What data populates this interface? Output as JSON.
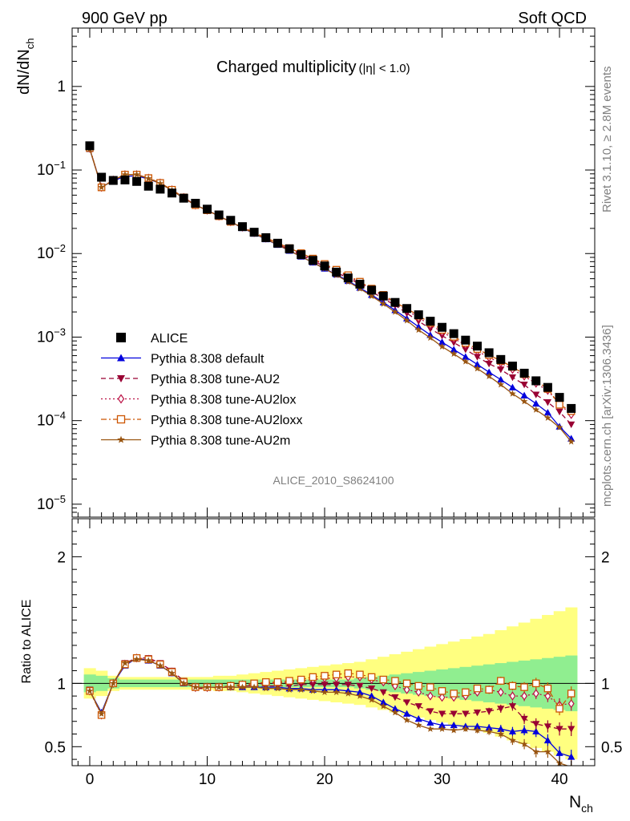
{
  "header": {
    "left": "900 GeV pp",
    "right": "Soft QCD"
  },
  "side_text": {
    "rivet": "Rivet 3.1.10, ≥ 2.8M events",
    "source": "mcplots.cern.ch [arXiv:1306.3436]"
  },
  "chart_data": [
    {
      "type": "scatter",
      "panel": "main",
      "title": "Charged multiplicity",
      "title_suffix": "(|η| < 1.0)",
      "ylabel": "dN/dN",
      "ylabel_sub": "ch",
      "yscale": "log",
      "ylim": [
        7e-06,
        5
      ],
      "xlim": [
        -1.5,
        43
      ],
      "yticks": [
        {
          "v": 1e-05,
          "base": "10",
          "exp": "−5"
        },
        {
          "v": 0.0001,
          "base": "10",
          "exp": "−4"
        },
        {
          "v": 0.001,
          "base": "10",
          "exp": "−3"
        },
        {
          "v": 0.01,
          "base": "10",
          "exp": "−2"
        },
        {
          "v": 0.1,
          "base": "10",
          "exp": "−1"
        },
        {
          "v": 1,
          "base": "1",
          "exp": ""
        }
      ],
      "analysis_label": "ALICE_2010_S8624100",
      "legend_position": "lower-left",
      "x": [
        0,
        1,
        2,
        3,
        4,
        5,
        6,
        7,
        8,
        9,
        10,
        11,
        12,
        13,
        14,
        15,
        16,
        17,
        18,
        19,
        20,
        21,
        22,
        23,
        24,
        25,
        26,
        27,
        28,
        29,
        30,
        31,
        32,
        33,
        34,
        35,
        36,
        37,
        38,
        39,
        40,
        41
      ],
      "series": [
        {
          "name": "ALICE",
          "color": "#000000",
          "marker": "square-filled",
          "line": "none",
          "values": [
            0.195,
            0.082,
            0.075,
            0.076,
            0.073,
            0.064,
            0.059,
            0.053,
            0.046,
            0.04,
            0.034,
            0.029,
            0.025,
            0.021,
            0.018,
            0.0155,
            0.0133,
            0.0114,
            0.0097,
            0.0083,
            0.0071,
            0.006,
            0.0051,
            0.0043,
            0.00365,
            0.0031,
            0.0026,
            0.0022,
            0.00185,
            0.00155,
            0.00131,
            0.0011,
            0.00092,
            0.00078,
            0.00065,
            0.00054,
            0.00045,
            0.00037,
            0.0003,
            0.00025,
            0.00019,
            0.00014
          ]
        },
        {
          "name": "Pythia 8.308 default",
          "color": "#0000dd",
          "marker": "triangle-up-filled",
          "line": "solid",
          "values": [
            0.178,
            0.063,
            0.074,
            0.084,
            0.085,
            0.078,
            0.069,
            0.057,
            0.046,
            0.038,
            0.033,
            0.028,
            0.024,
            0.0202,
            0.0173,
            0.0148,
            0.0127,
            0.0108,
            0.0092,
            0.0078,
            0.0066,
            0.0056,
            0.0047,
            0.0039,
            0.0032,
            0.0026,
            0.0021,
            0.00167,
            0.00133,
            0.00106,
            0.00087,
            0.00071,
            0.00058,
            0.00047,
            0.00038,
            0.00031,
            0.00025,
            0.0002,
            0.00016,
            0.000125,
            8.5e-05,
            6.1e-05
          ]
        },
        {
          "name": "Pythia 8.308 tune-AU2",
          "color": "#990033",
          "marker": "triangle-down-filled",
          "line": "dashed",
          "values": [
            0.18,
            0.062,
            0.075,
            0.088,
            0.088,
            0.08,
            0.07,
            0.058,
            0.047,
            0.038,
            0.033,
            0.028,
            0.024,
            0.0205,
            0.0176,
            0.0151,
            0.013,
            0.0111,
            0.0096,
            0.0082,
            0.007,
            0.0059,
            0.0051,
            0.0043,
            0.0035,
            0.0029,
            0.0024,
            0.00193,
            0.00155,
            0.00126,
            0.00104,
            0.00086,
            0.00071,
            0.00058,
            0.00048,
            0.00041,
            0.00033,
            0.00027,
            0.000205,
            0.000166,
            0.000128,
            9e-05
          ]
        },
        {
          "name": "Pythia 8.308 tune-AU2lox",
          "color": "#bb1144",
          "marker": "diamond-open",
          "line": "dotted",
          "values": [
            0.182,
            0.062,
            0.076,
            0.088,
            0.088,
            0.08,
            0.07,
            0.058,
            0.047,
            0.038,
            0.033,
            0.028,
            0.024,
            0.0207,
            0.0178,
            0.0153,
            0.0132,
            0.0114,
            0.0099,
            0.0085,
            0.0073,
            0.0062,
            0.0053,
            0.0045,
            0.0037,
            0.0031,
            0.0025,
            0.0021,
            0.0017,
            0.0014,
            0.00115,
            0.00096,
            0.00081,
            0.00068,
            0.00057,
            0.00049,
            0.00041,
            0.00034,
            0.00028,
            0.00023,
            0.000158,
            0.000118
          ]
        },
        {
          "name": "Pythia 8.308 tune-AU2loxx",
          "color": "#cc5500",
          "marker": "square-open",
          "line": "dashdot",
          "values": [
            0.183,
            0.062,
            0.076,
            0.088,
            0.088,
            0.08,
            0.07,
            0.058,
            0.047,
            0.038,
            0.033,
            0.028,
            0.024,
            0.0208,
            0.0179,
            0.0155,
            0.0134,
            0.0116,
            0.0101,
            0.0087,
            0.0075,
            0.0064,
            0.0055,
            0.0046,
            0.0038,
            0.0032,
            0.0026,
            0.0022,
            0.0018,
            0.00148,
            0.00122,
            0.00101,
            0.00085,
            0.00072,
            0.00061,
            0.00052,
            0.00044,
            0.00036,
            0.0003,
            0.00024,
            0.000155,
            0.00013
          ]
        },
        {
          "name": "Pythia 8.308 tune-AU2m",
          "color": "#995511",
          "marker": "star-filled",
          "line": "solid",
          "values": [
            0.178,
            0.062,
            0.075,
            0.088,
            0.088,
            0.079,
            0.069,
            0.057,
            0.046,
            0.038,
            0.033,
            0.028,
            0.024,
            0.0203,
            0.0174,
            0.0149,
            0.0128,
            0.0108,
            0.0092,
            0.0078,
            0.0066,
            0.0055,
            0.0046,
            0.0038,
            0.0031,
            0.0025,
            0.002,
            0.00158,
            0.00122,
            0.00098,
            0.00077,
            0.00063,
            0.00051,
            0.00042,
            0.00034,
            0.00027,
            0.00021,
            0.00017,
            0.000135,
            0.000108,
            8.3e-05,
            5.6e-05
          ]
        }
      ]
    },
    {
      "type": "scatter",
      "panel": "ratio",
      "ylabel": "Ratio to ALICE",
      "xlabel": "N",
      "xlabel_sub": "ch",
      "ylim": [
        0.35,
        2.3
      ],
      "xlim": [
        -1.5,
        43
      ],
      "xticks": [
        0,
        10,
        20,
        30,
        40
      ],
      "yticks": [
        0.5,
        1,
        2
      ],
      "reference_line": 1,
      "bands": {
        "inner_color": "#90ee90",
        "outer_color": "#ffff80",
        "inner_halfwidth": [
          0.07,
          0.06,
          0.04,
          0.03,
          0.03,
          0.03,
          0.03,
          0.03,
          0.03,
          0.03,
          0.03,
          0.03,
          0.03,
          0.03,
          0.03,
          0.03,
          0.03,
          0.03,
          0.03,
          0.03,
          0.03,
          0.03,
          0.03,
          0.04,
          0.05,
          0.06,
          0.07,
          0.08,
          0.09,
          0.1,
          0.11,
          0.12,
          0.13,
          0.14,
          0.15,
          0.16,
          0.17,
          0.18,
          0.19,
          0.2,
          0.21,
          0.22
        ],
        "outer_halfwidth": [
          0.12,
          0.1,
          0.06,
          0.05,
          0.05,
          0.05,
          0.05,
          0.05,
          0.05,
          0.05,
          0.05,
          0.06,
          0.06,
          0.07,
          0.08,
          0.09,
          0.1,
          0.11,
          0.12,
          0.13,
          0.14,
          0.15,
          0.16,
          0.17,
          0.19,
          0.21,
          0.23,
          0.25,
          0.27,
          0.29,
          0.31,
          0.33,
          0.35,
          0.37,
          0.39,
          0.42,
          0.45,
          0.48,
          0.51,
          0.54,
          0.57,
          0.6
        ]
      },
      "series": [
        {
          "name": "Pythia 8.308 default",
          "color": "#0000dd",
          "marker": "triangle-up-filled",
          "line": "solid",
          "values": [
            0.94,
            0.77,
            1.0,
            1.14,
            1.2,
            1.18,
            1.14,
            1.08,
            1.0,
            0.97,
            0.97,
            0.97,
            0.97,
            0.97,
            0.97,
            0.97,
            0.97,
            0.96,
            0.96,
            0.95,
            0.95,
            0.95,
            0.94,
            0.93,
            0.9,
            0.85,
            0.8,
            0.76,
            0.72,
            0.69,
            0.67,
            0.67,
            0.66,
            0.66,
            0.65,
            0.64,
            0.62,
            0.63,
            0.62,
            0.55,
            0.45,
            0.42
          ]
        },
        {
          "name": "Pythia 8.308 tune-AU2",
          "color": "#990033",
          "marker": "triangle-down-filled",
          "line": "dashed",
          "values": [
            0.95,
            0.75,
            1.0,
            1.16,
            1.2,
            1.2,
            1.16,
            1.1,
            1.02,
            0.96,
            0.96,
            0.97,
            0.97,
            0.98,
            0.98,
            0.98,
            0.98,
            0.98,
            0.99,
            0.99,
            0.99,
            0.99,
            0.99,
            0.98,
            0.96,
            0.93,
            0.89,
            0.85,
            0.82,
            0.78,
            0.76,
            0.76,
            0.76,
            0.77,
            0.78,
            0.8,
            0.82,
            0.72,
            0.68,
            0.66,
            0.64,
            0.64
          ]
        },
        {
          "name": "Pythia 8.308 tune-AU2lox",
          "color": "#bb1144",
          "marker": "diamond-open",
          "line": "dotted",
          "values": [
            0.94,
            0.75,
            1.0,
            1.15,
            1.2,
            1.19,
            1.15,
            1.09,
            1.01,
            0.97,
            0.97,
            0.97,
            0.98,
            0.99,
            0.99,
            1.0,
            1.0,
            1.01,
            1.02,
            1.03,
            1.04,
            1.04,
            1.05,
            1.05,
            1.03,
            1.01,
            0.98,
            0.95,
            0.93,
            0.9,
            0.89,
            0.89,
            0.9,
            0.93,
            0.95,
            0.93,
            0.9,
            0.9,
            0.92,
            0.9,
            0.83,
            0.84
          ]
        },
        {
          "name": "Pythia 8.308 tune-AU2loxx",
          "color": "#cc5500",
          "marker": "square-open",
          "line": "dashdot",
          "values": [
            0.94,
            0.75,
            1.0,
            1.15,
            1.2,
            1.19,
            1.15,
            1.09,
            1.01,
            0.97,
            0.97,
            0.97,
            0.98,
            0.99,
            1.0,
            1.01,
            1.01,
            1.02,
            1.03,
            1.05,
            1.06,
            1.07,
            1.08,
            1.07,
            1.05,
            1.03,
            1.02,
            1.0,
            0.98,
            0.97,
            0.94,
            0.92,
            0.93,
            0.96,
            0.95,
            1.02,
            0.98,
            0.97,
            1.0,
            0.96,
            0.8,
            0.92
          ]
        },
        {
          "name": "Pythia 8.308 tune-AU2m",
          "color": "#995511",
          "marker": "star-filled",
          "line": "solid",
          "values": [
            0.94,
            0.76,
            1.0,
            1.16,
            1.19,
            1.18,
            1.14,
            1.08,
            1.0,
            0.97,
            0.97,
            0.97,
            0.97,
            0.97,
            0.97,
            0.96,
            0.96,
            0.95,
            0.95,
            0.94,
            0.93,
            0.93,
            0.92,
            0.9,
            0.87,
            0.82,
            0.77,
            0.71,
            0.67,
            0.64,
            0.64,
            0.63,
            0.64,
            0.63,
            0.62,
            0.6,
            0.55,
            0.52,
            0.46,
            0.46,
            0.37,
            0.34
          ]
        }
      ]
    }
  ]
}
